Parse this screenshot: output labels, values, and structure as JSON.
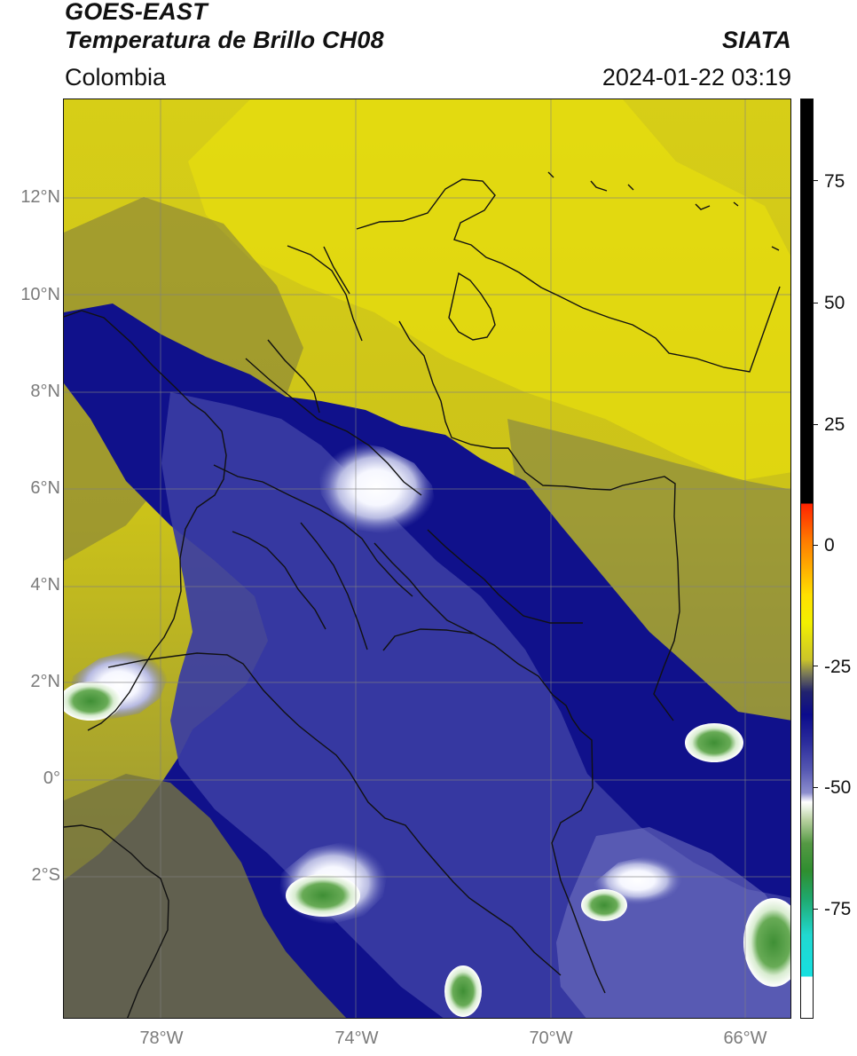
{
  "header": {
    "title1": "GOES-EAST",
    "title2": "Temperatura de Brillo CH08",
    "brand": "SIATA",
    "subtitle": "Colombia",
    "timestamp": "2024-01-22 03:19"
  },
  "axes": {
    "y_labels": [
      "12°N",
      "10°N",
      "8°N",
      "6°N",
      "4°N",
      "2°N",
      "0°",
      "2°S"
    ],
    "x_labels": [
      "78°W",
      "74°W",
      "70°W",
      "66°W"
    ]
  },
  "colorbar": {
    "labels": [
      "75",
      "50",
      "25",
      "0",
      "-25",
      "-50",
      "-75"
    ]
  },
  "colors": {
    "yellow": "#d8cf15",
    "olive": "#8b8a40",
    "navy": "#10118b",
    "blue": "#3b3ea5",
    "lavender": "#8d8ece",
    "white": "#ffffff",
    "green": "#4f9d44",
    "border": "#111111"
  },
  "map": {
    "legend": "Temperatura de Brillo CH08"
  }
}
